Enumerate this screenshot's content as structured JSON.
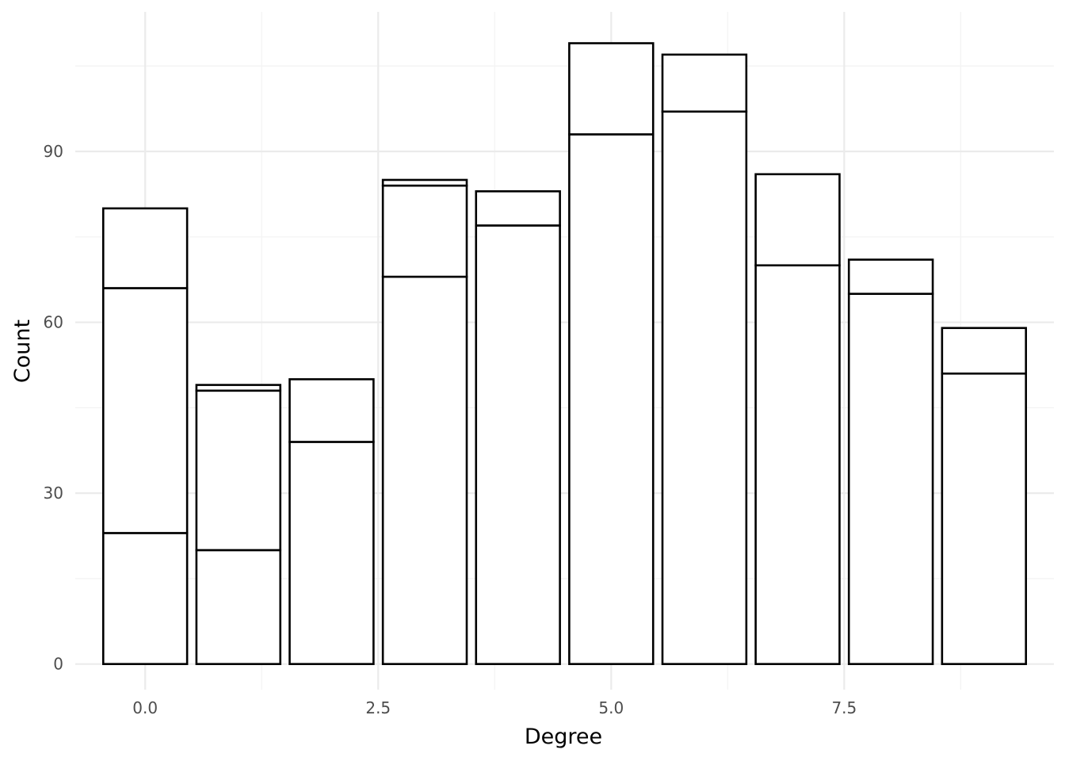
{
  "chart_data": {
    "type": "bar",
    "stacked": true,
    "title": "",
    "xlabel": "Degree",
    "ylabel": "Count",
    "x": [
      0,
      1,
      2,
      3,
      4,
      5,
      6,
      7,
      8,
      9
    ],
    "segment_boundaries": [
      [
        23,
        66,
        80
      ],
      [
        20,
        48,
        49
      ],
      [
        39,
        50
      ],
      [
        68,
        84,
        85
      ],
      [
        77,
        83
      ],
      [
        93,
        109
      ],
      [
        97,
        107
      ],
      [
        70,
        86
      ],
      [
        65,
        71
      ],
      [
        51,
        59
      ]
    ],
    "totals": [
      80,
      49,
      50,
      85,
      83,
      109,
      107,
      86,
      71,
      59
    ],
    "xlim": [
      -0.75,
      9.75
    ],
    "ylim": [
      -4.5,
      114.5
    ],
    "x_ticks": [
      0,
      2.5,
      5,
      7.5
    ],
    "x_tick_labels": [
      "0.0",
      "2.5",
      "5.0",
      "7.5"
    ],
    "y_ticks": [
      0,
      30,
      60,
      90
    ],
    "y_tick_labels": [
      "0",
      "30",
      "60",
      "90"
    ],
    "grid": true,
    "legend": "none",
    "colors": {
      "fill": "#ffffff",
      "outline": "#000000",
      "grid_major": "#ebebeb",
      "grid_minor": "#f3f3f3",
      "tick_text": "#4d4d4d"
    }
  }
}
